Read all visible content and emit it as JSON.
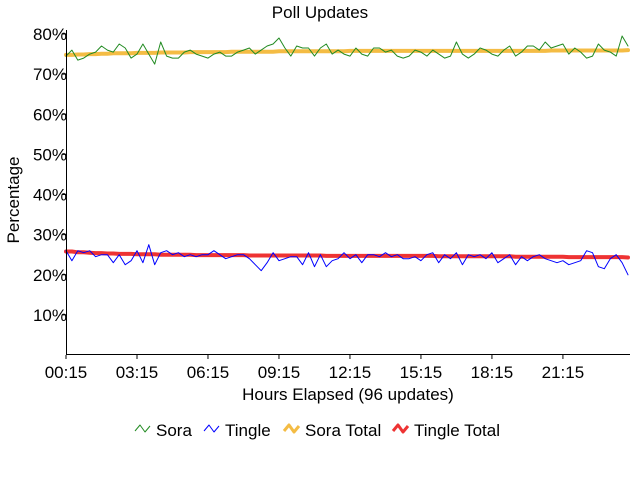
{
  "chart_data": {
    "type": "line",
    "title": "Poll Updates",
    "xlabel": "Hours Elapsed (96 updates)",
    "ylabel": "Percentage",
    "ylim": [
      0,
      80
    ],
    "y_ticks": [
      "10%",
      "20%",
      "30%",
      "40%",
      "50%",
      "60%",
      "70%",
      "80%"
    ],
    "x_ticks": [
      "00:15",
      "03:15",
      "06:15",
      "09:15",
      "12:15",
      "15:15",
      "18:15",
      "21:15"
    ],
    "x_range": [
      "00:15",
      "24:00"
    ],
    "grid": false,
    "legend_position": "bottom",
    "series": [
      {
        "name": "Sora",
        "color": "#228B22",
        "values": [
          74.5,
          76,
          73.5,
          74,
          75,
          75.5,
          77,
          76,
          75.5,
          77.5,
          76.5,
          74,
          75,
          77.5,
          75,
          72.5,
          78,
          74.5,
          74,
          74,
          75.5,
          76,
          75,
          74.5,
          74,
          75,
          75.5,
          74.5,
          74.5,
          75.5,
          76,
          76.5,
          75,
          76,
          77,
          77.5,
          79,
          76.5,
          74.5,
          77,
          76.5,
          76.5,
          74.5,
          76.5,
          77.5,
          75,
          76,
          75,
          74.5,
          76.5,
          75,
          74.5,
          76.5,
          76.5,
          75.5,
          76,
          74.5,
          74,
          74.5,
          76,
          75.5,
          74.5,
          76,
          75,
          74,
          74.5,
          78,
          75,
          74,
          75,
          76.5,
          76,
          75,
          74.5,
          76,
          77,
          74.5,
          75.5,
          77,
          77,
          76,
          78,
          76.5,
          77,
          77.5,
          75,
          76.5,
          75.5,
          74,
          74.5,
          77.5,
          76,
          75.5,
          74.5,
          79.5,
          77
        ]
      },
      {
        "name": "Tingle",
        "color": "#0000FF",
        "values": [
          26,
          23.5,
          26,
          25.5,
          26,
          24.5,
          25,
          25,
          23,
          25,
          22.5,
          23.5,
          26,
          23,
          27.5,
          22.5,
          25.5,
          26,
          25,
          25.5,
          24.5,
          25,
          24.5,
          25,
          25,
          26,
          25,
          24,
          24.5,
          25,
          25,
          24,
          22.5,
          21,
          23,
          25.5,
          23.5,
          24,
          24.5,
          24.5,
          22.5,
          25.5,
          22,
          25,
          22,
          23.5,
          24,
          25.5,
          24,
          25,
          23,
          25,
          25,
          24.5,
          25.5,
          24.5,
          25,
          24,
          24,
          24.5,
          23.5,
          25,
          25.5,
          23,
          25,
          24,
          25.5,
          22.5,
          25,
          24.5,
          25,
          24,
          25.5,
          23,
          24,
          25,
          22.5,
          24.5,
          23.5,
          24.5,
          25,
          24,
          23.5,
          23,
          23.5,
          22.5,
          23,
          23.5,
          26,
          25.5,
          22,
          21.5,
          24,
          25,
          23,
          20
        ]
      },
      {
        "name": "Sora Total",
        "color": "#F4BC44",
        "values": [
          74.8,
          74.8,
          74.9,
          74.9,
          75.0,
          75.0,
          75.1,
          75.1,
          75.2,
          75.2,
          75.2,
          75.2,
          75.3,
          75.3,
          75.3,
          75.3,
          75.4,
          75.4,
          75.4,
          75.4,
          75.4,
          75.5,
          75.5,
          75.5,
          75.5,
          75.5,
          75.5,
          75.5,
          75.6,
          75.6,
          75.6,
          75.6,
          75.6,
          75.6,
          75.6,
          75.6,
          75.7,
          75.7,
          75.7,
          75.7,
          75.7,
          75.7,
          75.7,
          75.7,
          75.7,
          75.7,
          75.7,
          75.7,
          75.8,
          75.8,
          75.8,
          75.8,
          75.8,
          75.8,
          75.8,
          75.8,
          75.8,
          75.8,
          75.8,
          75.8,
          75.8,
          75.8,
          75.8,
          75.8,
          75.8,
          75.8,
          75.8,
          75.8,
          75.8,
          75.8,
          75.8,
          75.8,
          75.8,
          75.8,
          75.8,
          75.8,
          75.8,
          75.8,
          75.8,
          75.8,
          75.8,
          75.8,
          75.9,
          75.9,
          75.9,
          75.9,
          75.9,
          75.9,
          75.9,
          75.9,
          75.9,
          75.9,
          75.9,
          75.9,
          75.9,
          76.0
        ]
      },
      {
        "name": "Tingle Total",
        "color": "#EE3333",
        "values": [
          25.8,
          25.8,
          25.6,
          25.6,
          25.5,
          25.4,
          25.4,
          25.3,
          25.3,
          25.2,
          25.2,
          25.2,
          25.1,
          25.1,
          25.1,
          25.1,
          25.0,
          25.0,
          25.0,
          25.0,
          25.0,
          25.0,
          24.9,
          24.9,
          24.9,
          24.9,
          24.9,
          24.9,
          24.9,
          24.9,
          24.9,
          24.8,
          24.8,
          24.8,
          24.8,
          24.8,
          24.8,
          24.8,
          24.8,
          24.8,
          24.8,
          24.8,
          24.8,
          24.8,
          24.7,
          24.7,
          24.7,
          24.7,
          24.7,
          24.7,
          24.7,
          24.7,
          24.7,
          24.7,
          24.7,
          24.7,
          24.7,
          24.7,
          24.7,
          24.7,
          24.7,
          24.7,
          24.7,
          24.6,
          24.6,
          24.6,
          24.6,
          24.6,
          24.6,
          24.6,
          24.6,
          24.6,
          24.6,
          24.6,
          24.6,
          24.6,
          24.5,
          24.5,
          24.5,
          24.5,
          24.5,
          24.5,
          24.5,
          24.5,
          24.5,
          24.4,
          24.4,
          24.4,
          24.4,
          24.4,
          24.4,
          24.4,
          24.4,
          24.4,
          24.4,
          24.3
        ]
      }
    ]
  }
}
